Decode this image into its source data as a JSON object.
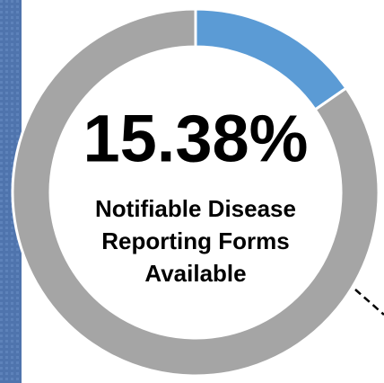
{
  "chart_data": {
    "type": "donut",
    "values": [
      15.38,
      84.62
    ],
    "value_labels": [
      "15.38%",
      null
    ],
    "colors": [
      "#5b9bd5",
      "#a5a5a5"
    ],
    "subtitle": [
      "Notifiable Disease",
      "Reporting Forms",
      "Available"
    ]
  }
}
